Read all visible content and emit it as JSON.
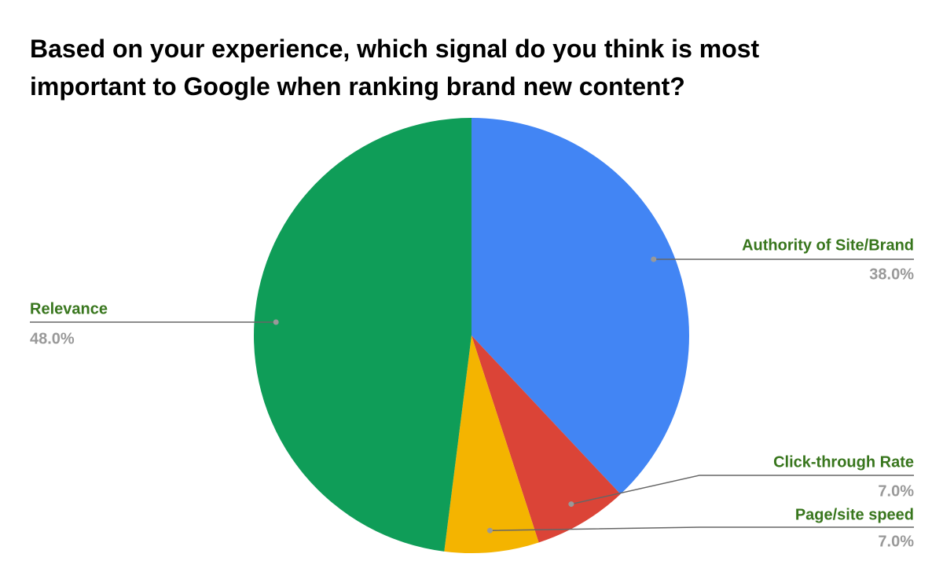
{
  "chart_data": {
    "type": "pie",
    "title": "Based on your experience, which signal do you think is most important to Google when ranking brand new content?",
    "categories": [
      "Authority of Site/Brand",
      "Click-through Rate",
      "Page/site speed",
      "Relevance"
    ],
    "values": [
      38,
      7,
      7,
      48
    ],
    "value_labels": [
      "38.0%",
      "7.0%",
      "7.0%",
      "48.0%"
    ],
    "colors": [
      "#4285f4",
      "#db4437",
      "#f4b400",
      "#0f9d58"
    ]
  }
}
